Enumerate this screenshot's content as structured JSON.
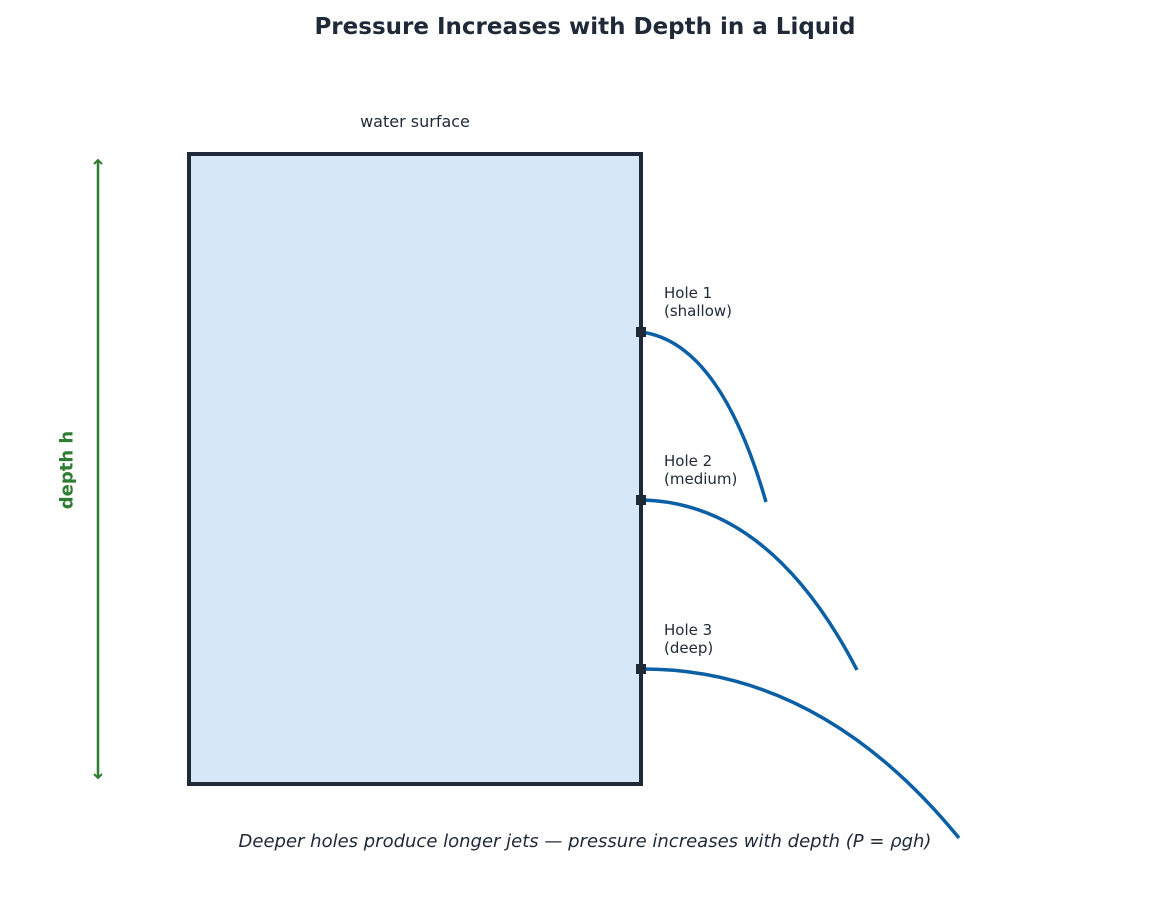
{
  "title": "Pressure Increases with Depth in a Liquid",
  "surface_label": "water surface",
  "depth_label": "depth h",
  "holes": [
    {
      "line1": "Hole 1",
      "line2": "(shallow)"
    },
    {
      "line1": "Hole 2",
      "line2": "(medium)"
    },
    {
      "line1": "Hole 3",
      "line2": "(deep)"
    }
  ],
  "caption": "Deeper holes produce longer jets — pressure increases with depth (P = ρgh)",
  "colors": {
    "water": "#d6e8f7",
    "tank_outline": "#1f2937",
    "jet": "#0b5fa5",
    "depth_arrow": "#2e7d32"
  }
}
